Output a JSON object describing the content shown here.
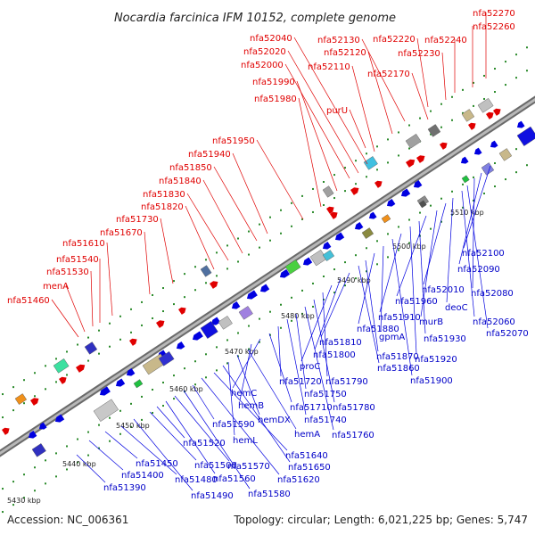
{
  "title": "Nocardia farcinica IFM 10152, complete genome",
  "accession": "Accession: NC_006361",
  "summary": "Topology: circular; Length: 6,021,225 bp; Genes: 5,747",
  "colors": {
    "forward": "#e00000",
    "reverse": "#0000e0",
    "backbone": "#9a9a9a"
  },
  "kbp_labels": [
    "5430 kbp",
    "5440 kbp",
    "5450 kbp",
    "5460 kbp",
    "5470 kbp",
    "5480 kbp",
    "5490 kbp",
    "5500 kbp",
    "5510 kbp"
  ],
  "forward_labels": [
    "nfa51460",
    "menA",
    "nfa51530",
    "nfa51540",
    "nfa51610",
    "nfa51670",
    "nfa51730",
    "nfa51820",
    "nfa51830",
    "nfa51840",
    "nfa51850",
    "nfa51940",
    "nfa51950",
    "nfa51980",
    "nfa51990",
    "nfa52000",
    "nfa52020",
    "nfa52040",
    "purU",
    "nfa52110",
    "nfa52120",
    "nfa52130",
    "nfa52170",
    "nfa52220",
    "nfa52230",
    "nfa52240",
    "nfa52260",
    "nfa52270"
  ],
  "reverse_labels": [
    "nfa51390",
    "nfa51400",
    "nfa51450",
    "nfa51480",
    "nfa51490",
    "nfa51500",
    "nfa51520",
    "nfa51560",
    "nfa51570",
    "nfa51580",
    "nfa51590",
    "nfa51620",
    "nfa51640",
    "nfa51650",
    "hemL",
    "hemDX",
    "hemA",
    "hemB",
    "hemC",
    "nfa51710",
    "nfa51720",
    "nfa51740",
    "nfa51750",
    "nfa51760",
    "nfa51780",
    "nfa51790",
    "proC",
    "nfa51800",
    "nfa51810",
    "nfa51860",
    "nfa51870",
    "nfa51880",
    "gpmA",
    "nfa51900",
    "nfa51910",
    "nfa51920",
    "nfa51930",
    "nfa51960",
    "murB",
    "nfa52010",
    "deoC",
    "nfa52060",
    "nfa52070",
    "nfa52080",
    "nfa52090",
    "nfa52100"
  ]
}
